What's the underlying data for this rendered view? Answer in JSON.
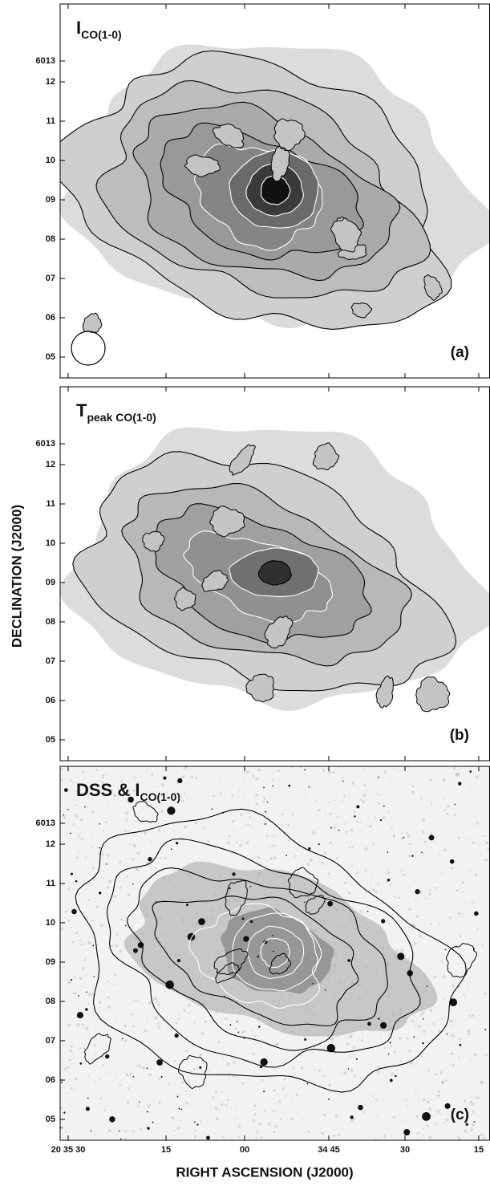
{
  "panels": [
    {
      "label": {
        "main": "I",
        "sub": "CO(1-0)"
      },
      "tag": "(a)",
      "yticks": [
        "6013",
        "12",
        "11",
        "10",
        "09",
        "08",
        "07",
        "06",
        "05"
      ]
    },
    {
      "label": {
        "main": "T",
        "sub": "peak CO(1-0)"
      },
      "tag": "(b)",
      "yticks": [
        "6013",
        "12",
        "11",
        "10",
        "09",
        "08",
        "07",
        "06",
        "05"
      ]
    },
    {
      "label": {
        "main": "DSS & I",
        "sub": "CO(1-0)"
      },
      "tag": "(c)",
      "yticks": [
        "6013",
        "12",
        "11",
        "10",
        "09",
        "08",
        "07",
        "06",
        "05"
      ]
    }
  ],
  "y_axis_title": "DECLINATION (J2000)",
  "x_axis_title": "RIGHT ASCENSION (J2000)",
  "xticks": [
    "20 35 30",
    "15",
    "00",
    "34 45",
    "30",
    "15"
  ]
}
